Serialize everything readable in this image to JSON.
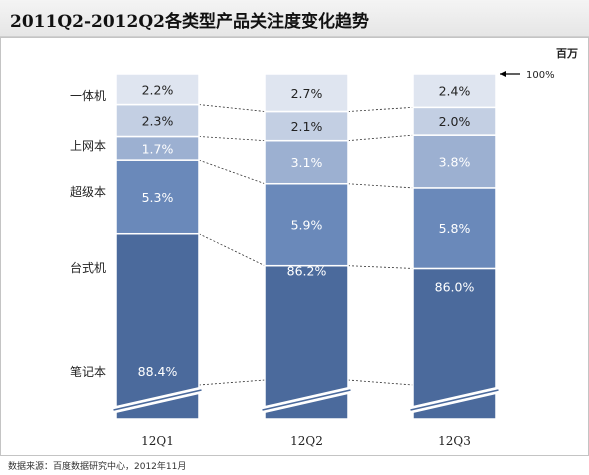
{
  "title": "2011Q2-2012Q2各类型产品关注度变化趋势",
  "footnote": "数据来源：百度数据研究中心，2012年11月",
  "chart_data": {
    "type": "bar",
    "stacked": true,
    "unit": "百万",
    "reference_label": "100%",
    "categories": [
      "12Q1",
      "12Q2",
      "12Q3"
    ],
    "series": [
      {
        "name": "笔记本",
        "values": [
          88.4,
          86.2,
          86.0
        ],
        "labels": [
          "88.4%",
          "86.2%",
          "86.0%"
        ],
        "color": "#4b6a9c"
      },
      {
        "name": "台式机",
        "values": [
          5.3,
          5.9,
          5.8
        ],
        "labels": [
          "5.3%",
          "5.9%",
          "5.8%"
        ],
        "color": "#6a89ba"
      },
      {
        "name": "超级本",
        "values": [
          1.7,
          3.1,
          3.8
        ],
        "labels": [
          "1.7%",
          "3.1%",
          "3.8%"
        ],
        "color": "#9cb0d1"
      },
      {
        "name": "上网本",
        "values": [
          2.3,
          2.1,
          2.0
        ],
        "labels": [
          "2.3%",
          "2.1%",
          "2.0%"
        ],
        "color": "#c3cfe3"
      },
      {
        "name": "一体机",
        "values": [
          2.2,
          2.7,
          2.4
        ],
        "labels": [
          "2.2%",
          "2.7%",
          "2.4%"
        ],
        "color": "#dfe5f0"
      }
    ],
    "axis_break": true,
    "connector_lines": true,
    "grid": false
  }
}
